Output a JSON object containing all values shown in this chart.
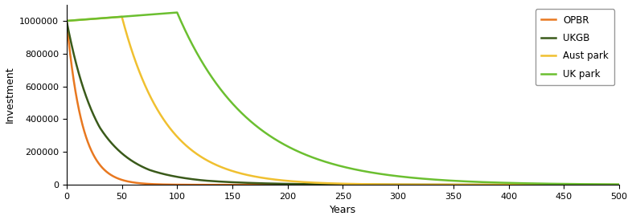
{
  "title": "",
  "xlabel": "Years",
  "ylabel": "Investment",
  "xlim": [
    0,
    500
  ],
  "ylim": [
    0,
    1100000
  ],
  "yticks": [
    0,
    200000,
    400000,
    600000,
    800000,
    1000000
  ],
  "xticks": [
    0,
    50,
    100,
    150,
    200,
    250,
    300,
    350,
    400,
    450,
    500
  ],
  "series": {
    "OPBR": {
      "color": "#E87820",
      "label": "OPBR"
    },
    "UKGB": {
      "color": "#3A5A1A",
      "label": "UKGB"
    },
    "Aust park": {
      "color": "#F0C030",
      "label": "Aust park"
    },
    "UK park": {
      "color": "#6BBF30",
      "label": "UK park"
    }
  },
  "pv_initial": 1000000,
  "figsize": [
    7.86,
    2.74
  ],
  "dpi": 100,
  "legend_loc": "upper right",
  "background_color": "#ffffff",
  "linewidth": 1.8
}
